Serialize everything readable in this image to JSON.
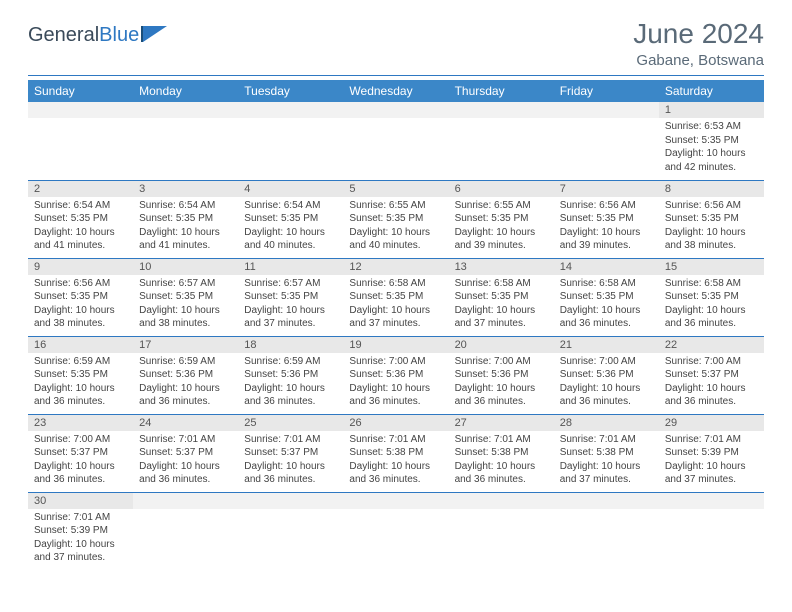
{
  "logo": {
    "text_general": "General",
    "text_blue": "Blue"
  },
  "title": "June 2024",
  "location": "Gabane, Botswana",
  "colors": {
    "header_bg": "#3b87c8",
    "header_text": "#ffffff",
    "divider": "#2e78c2",
    "daynum_bg": "#e8e8e8",
    "empty_bg": "#f2f2f2",
    "text": "#444444",
    "title_text": "#5a6a78",
    "logo_blue": "#2e78c2",
    "logo_dark": "#3a4a5a"
  },
  "typography": {
    "title_fontsize": 28,
    "location_fontsize": 15,
    "dayheader_fontsize": 12,
    "cell_fontsize": 10
  },
  "day_headers": [
    "Sunday",
    "Monday",
    "Tuesday",
    "Wednesday",
    "Thursday",
    "Friday",
    "Saturday"
  ],
  "labels": {
    "sunrise": "Sunrise:",
    "sunset": "Sunset:",
    "daylight": "Daylight:"
  },
  "weeks": [
    [
      null,
      null,
      null,
      null,
      null,
      null,
      {
        "n": "1",
        "sr": "6:53 AM",
        "ss": "5:35 PM",
        "dl": "10 hours and 42 minutes."
      }
    ],
    [
      {
        "n": "2",
        "sr": "6:54 AM",
        "ss": "5:35 PM",
        "dl": "10 hours and 41 minutes."
      },
      {
        "n": "3",
        "sr": "6:54 AM",
        "ss": "5:35 PM",
        "dl": "10 hours and 41 minutes."
      },
      {
        "n": "4",
        "sr": "6:54 AM",
        "ss": "5:35 PM",
        "dl": "10 hours and 40 minutes."
      },
      {
        "n": "5",
        "sr": "6:55 AM",
        "ss": "5:35 PM",
        "dl": "10 hours and 40 minutes."
      },
      {
        "n": "6",
        "sr": "6:55 AM",
        "ss": "5:35 PM",
        "dl": "10 hours and 39 minutes."
      },
      {
        "n": "7",
        "sr": "6:56 AM",
        "ss": "5:35 PM",
        "dl": "10 hours and 39 minutes."
      },
      {
        "n": "8",
        "sr": "6:56 AM",
        "ss": "5:35 PM",
        "dl": "10 hours and 38 minutes."
      }
    ],
    [
      {
        "n": "9",
        "sr": "6:56 AM",
        "ss": "5:35 PM",
        "dl": "10 hours and 38 minutes."
      },
      {
        "n": "10",
        "sr": "6:57 AM",
        "ss": "5:35 PM",
        "dl": "10 hours and 38 minutes."
      },
      {
        "n": "11",
        "sr": "6:57 AM",
        "ss": "5:35 PM",
        "dl": "10 hours and 37 minutes."
      },
      {
        "n": "12",
        "sr": "6:58 AM",
        "ss": "5:35 PM",
        "dl": "10 hours and 37 minutes."
      },
      {
        "n": "13",
        "sr": "6:58 AM",
        "ss": "5:35 PM",
        "dl": "10 hours and 37 minutes."
      },
      {
        "n": "14",
        "sr": "6:58 AM",
        "ss": "5:35 PM",
        "dl": "10 hours and 36 minutes."
      },
      {
        "n": "15",
        "sr": "6:58 AM",
        "ss": "5:35 PM",
        "dl": "10 hours and 36 minutes."
      }
    ],
    [
      {
        "n": "16",
        "sr": "6:59 AM",
        "ss": "5:35 PM",
        "dl": "10 hours and 36 minutes."
      },
      {
        "n": "17",
        "sr": "6:59 AM",
        "ss": "5:36 PM",
        "dl": "10 hours and 36 minutes."
      },
      {
        "n": "18",
        "sr": "6:59 AM",
        "ss": "5:36 PM",
        "dl": "10 hours and 36 minutes."
      },
      {
        "n": "19",
        "sr": "7:00 AM",
        "ss": "5:36 PM",
        "dl": "10 hours and 36 minutes."
      },
      {
        "n": "20",
        "sr": "7:00 AM",
        "ss": "5:36 PM",
        "dl": "10 hours and 36 minutes."
      },
      {
        "n": "21",
        "sr": "7:00 AM",
        "ss": "5:36 PM",
        "dl": "10 hours and 36 minutes."
      },
      {
        "n": "22",
        "sr": "7:00 AM",
        "ss": "5:37 PM",
        "dl": "10 hours and 36 minutes."
      }
    ],
    [
      {
        "n": "23",
        "sr": "7:00 AM",
        "ss": "5:37 PM",
        "dl": "10 hours and 36 minutes."
      },
      {
        "n": "24",
        "sr": "7:01 AM",
        "ss": "5:37 PM",
        "dl": "10 hours and 36 minutes."
      },
      {
        "n": "25",
        "sr": "7:01 AM",
        "ss": "5:37 PM",
        "dl": "10 hours and 36 minutes."
      },
      {
        "n": "26",
        "sr": "7:01 AM",
        "ss": "5:38 PM",
        "dl": "10 hours and 36 minutes."
      },
      {
        "n": "27",
        "sr": "7:01 AM",
        "ss": "5:38 PM",
        "dl": "10 hours and 36 minutes."
      },
      {
        "n": "28",
        "sr": "7:01 AM",
        "ss": "5:38 PM",
        "dl": "10 hours and 37 minutes."
      },
      {
        "n": "29",
        "sr": "7:01 AM",
        "ss": "5:39 PM",
        "dl": "10 hours and 37 minutes."
      }
    ],
    [
      {
        "n": "30",
        "sr": "7:01 AM",
        "ss": "5:39 PM",
        "dl": "10 hours and 37 minutes."
      },
      null,
      null,
      null,
      null,
      null,
      null
    ]
  ]
}
